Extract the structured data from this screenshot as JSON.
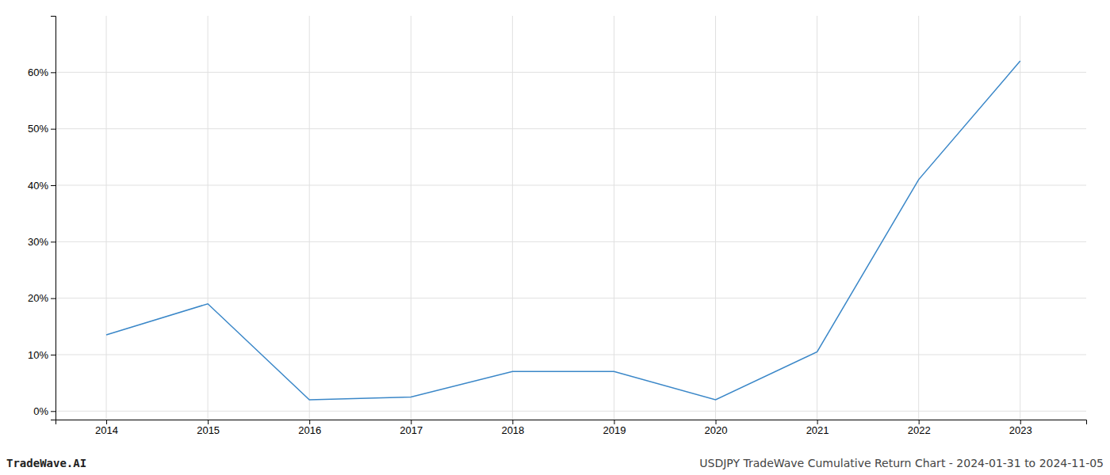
{
  "chart_data": {
    "type": "line",
    "x": [
      2014,
      2015,
      2016,
      2017,
      2018,
      2019,
      2020,
      2021,
      2022,
      2023
    ],
    "values": [
      0.135,
      0.19,
      0.02,
      0.025,
      0.07,
      0.07,
      0.02,
      0.105,
      0.41,
      0.62
    ],
    "color": "#3a87c8",
    "xlim": [
      2013.5,
      2023.65
    ],
    "xticks": [
      2014,
      2015,
      2016,
      2017,
      2018,
      2019,
      2020,
      2021,
      2022,
      2023
    ],
    "ylim": [
      -0.015,
      0.7
    ],
    "yticks": [
      {
        "value": 0.0,
        "label": "0%"
      },
      {
        "value": 0.1,
        "label": "10%"
      },
      {
        "value": 0.2,
        "label": "20%"
      },
      {
        "value": 0.3,
        "label": "30%"
      },
      {
        "value": 0.4,
        "label": "40%"
      },
      {
        "value": 0.5,
        "label": "50%"
      },
      {
        "value": 0.6,
        "label": "60%"
      }
    ],
    "grid": true,
    "annotations": [
      "TradeWave.AI",
      "USDJPY TradeWave Cumulative Return Chart - 2024-01-31 to 2024-11-05"
    ]
  }
}
